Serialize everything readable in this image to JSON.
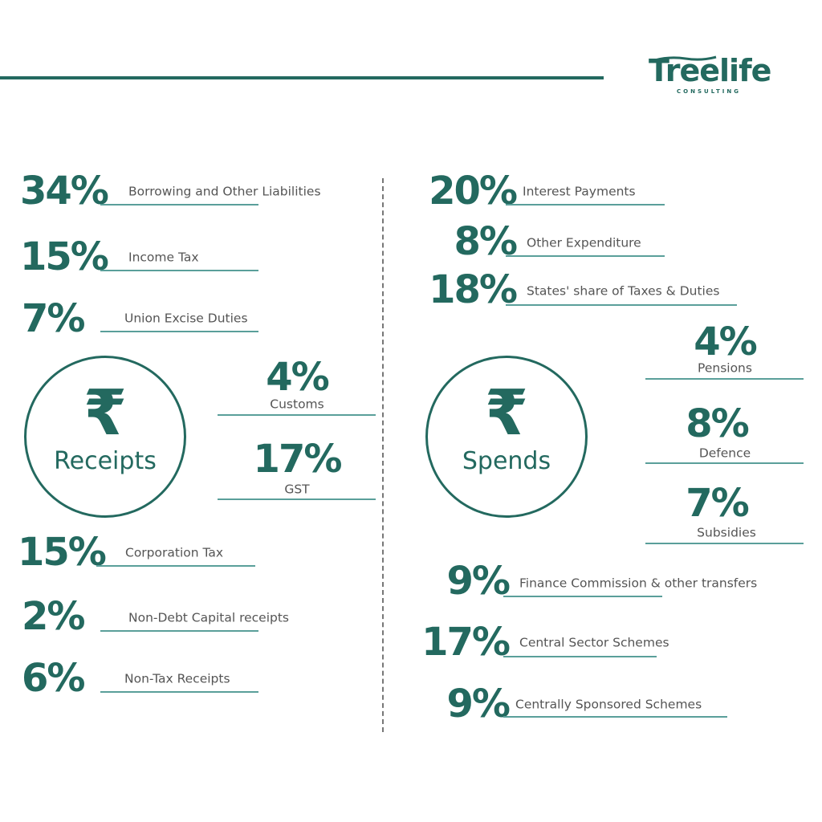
{
  "logo": {
    "name": "Treelife",
    "sub": "CONSULTING"
  },
  "colors": {
    "primary": "#23695f",
    "line": "#5a9f9a",
    "label": "#555555"
  },
  "receipts": {
    "title": "Receipts",
    "icon": "₹",
    "items": [
      {
        "pct": "34%",
        "label": "Borrowing and Other Liabilities"
      },
      {
        "pct": "15%",
        "label": "Income Tax"
      },
      {
        "pct": "7%",
        "label": "Union Excise Duties"
      },
      {
        "pct": "4%",
        "label": "Customs"
      },
      {
        "pct": "17%",
        "label": "GST"
      },
      {
        "pct": "15%",
        "label": "Corporation Tax"
      },
      {
        "pct": "2%",
        "label": "Non-Debt Capital receipts"
      },
      {
        "pct": "6%",
        "label": "Non-Tax Receipts"
      }
    ]
  },
  "spends": {
    "title": "Spends",
    "icon": "₹",
    "items": [
      {
        "pct": "20%",
        "label": "Interest Payments"
      },
      {
        "pct": "8%",
        "label": "Other Expenditure"
      },
      {
        "pct": "18%",
        "label": "States' share of Taxes & Duties"
      },
      {
        "pct": "4%",
        "label": "Pensions"
      },
      {
        "pct": "8%",
        "label": "Defence"
      },
      {
        "pct": "7%",
        "label": "Subsidies"
      },
      {
        "pct": "9%",
        "label": "Finance Commission & other transfers"
      },
      {
        "pct": "17%",
        "label": "Central Sector Schemes"
      },
      {
        "pct": "9%",
        "label": "Centrally Sponsored Schemes"
      }
    ]
  }
}
